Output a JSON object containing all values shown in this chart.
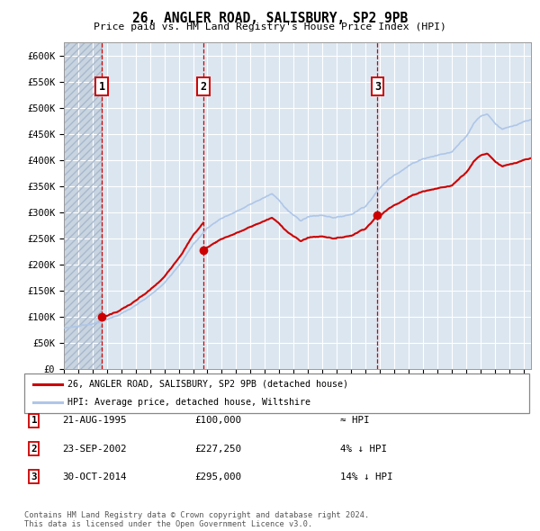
{
  "title": "26, ANGLER ROAD, SALISBURY, SP2 9PB",
  "subtitle": "Price paid vs. HM Land Registry's House Price Index (HPI)",
  "ylim": [
    0,
    625000
  ],
  "yticks": [
    0,
    50000,
    100000,
    150000,
    200000,
    250000,
    300000,
    350000,
    400000,
    450000,
    500000,
    550000,
    600000
  ],
  "ytick_labels": [
    "£0",
    "£50K",
    "£100K",
    "£150K",
    "£200K",
    "£250K",
    "£300K",
    "£350K",
    "£400K",
    "£450K",
    "£500K",
    "£550K",
    "£600K"
  ],
  "hpi_color": "#aec6e8",
  "price_color": "#cc0000",
  "dashed_line_color": "#cc0000",
  "plot_bg_color": "#dce6f0",
  "grid_color": "#ffffff",
  "sales": [
    {
      "date_num": 1995.64,
      "price": 100000,
      "label": "1"
    },
    {
      "date_num": 2002.73,
      "price": 227250,
      "label": "2"
    },
    {
      "date_num": 2014.83,
      "price": 295000,
      "label": "3"
    }
  ],
  "legend_property_label": "26, ANGLER ROAD, SALISBURY, SP2 9PB (detached house)",
  "legend_hpi_label": "HPI: Average price, detached house, Wiltshire",
  "table_rows": [
    {
      "num": "1",
      "date": "21-AUG-1995",
      "price": "£100,000",
      "hpi": "≈ HPI"
    },
    {
      "num": "2",
      "date": "23-SEP-2002",
      "price": "£227,250",
      "hpi": "4% ↓ HPI"
    },
    {
      "num": "3",
      "date": "30-OCT-2014",
      "price": "£295,000",
      "hpi": "14% ↓ HPI"
    }
  ],
  "footer": "Contains HM Land Registry data © Crown copyright and database right 2024.\nThis data is licensed under the Open Government Licence v3.0.",
  "xmin": 1993,
  "xmax": 2025.5
}
